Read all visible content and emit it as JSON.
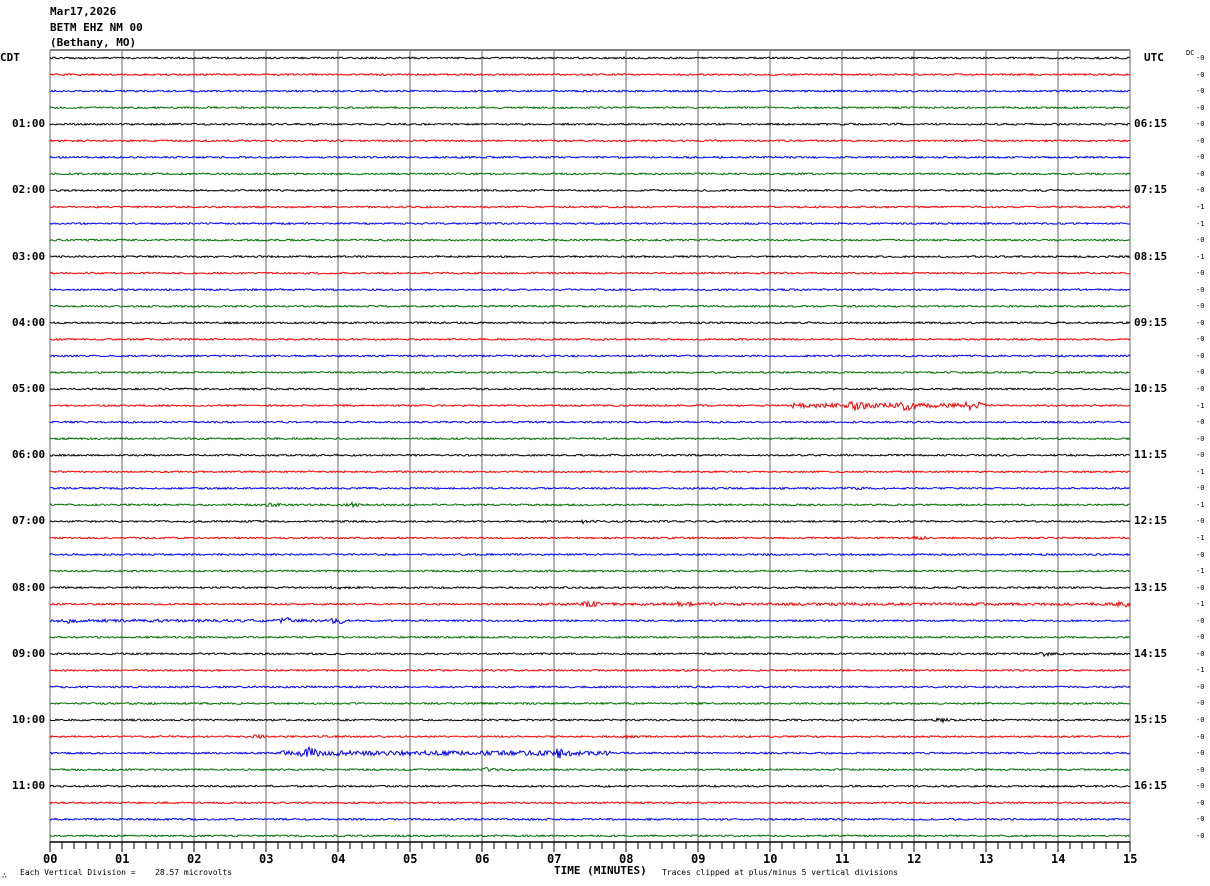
{
  "header": {
    "date": "Mar17,2026",
    "station": "BETM EHZ NM 00",
    "location": "(Bethany, MO)"
  },
  "left_timezone": "CDT",
  "right_timezone": "UTC",
  "dc_label": "DC",
  "footer": {
    "division_label": "Each Vertical Division =",
    "division_value": "28.57 microvolts",
    "clip_note": "Traces clipped at plus/minus 5 vertical divisions",
    "mark": "∴"
  },
  "chart_data": {
    "type": "line",
    "xlabel": "TIME (MINUTES)",
    "xlim": [
      0,
      15
    ],
    "x_ticks": [
      "00",
      "01",
      "02",
      "03",
      "04",
      "05",
      "06",
      "07",
      "08",
      "09",
      "10",
      "11",
      "12",
      "13",
      "14",
      "15"
    ],
    "trace_count": 48,
    "minutes_per_trace": 15,
    "trace_colors": [
      "#000000",
      "#ff0000",
      "#0000ff",
      "#007000"
    ],
    "left_hour_labels": [
      "01:00",
      "02:00",
      "03:00",
      "04:00",
      "05:00",
      "06:00",
      "07:00",
      "08:00",
      "09:00",
      "10:00",
      "11:00"
    ],
    "right_hour_labels": [
      "06:15",
      "07:15",
      "08:15",
      "09:15",
      "10:15",
      "11:15",
      "12:15",
      "13:15",
      "14:15",
      "15:15",
      "16:15"
    ],
    "dc_offsets": [
      "-0",
      "-0",
      "-0",
      "-0",
      "-0",
      "-0",
      "-0",
      "-0",
      "-0",
      "-1",
      "-1",
      "-0",
      "-1",
      "-0",
      "-0",
      "-0",
      "-0",
      "-0",
      "-0",
      "-0",
      "-0",
      "-1",
      "-0",
      "-0",
      "-0",
      "-1",
      "-0",
      "-1",
      "-0",
      "-1",
      "-0",
      "-1",
      "-0",
      "-1",
      "-0",
      "-0",
      "-0",
      "-1",
      "-0",
      "-0",
      "-0",
      "-0",
      "-0",
      "-0",
      "-0",
      "-0",
      "-0",
      "-0"
    ],
    "events": [
      {
        "trace": 21,
        "start": 10.3,
        "end": 12.9,
        "peaks": [
          11.2,
          11.9,
          12.8
        ],
        "amp": 6
      },
      {
        "trace": 26,
        "start": 10.8,
        "end": 11.6,
        "peaks": [
          11.2
        ],
        "amp": 2
      },
      {
        "trace": 27,
        "start": 2.5,
        "end": 6.0,
        "peaks": [
          3.1,
          4.2
        ],
        "amp": 2.5
      },
      {
        "trace": 28,
        "start": 6.5,
        "end": 8.6,
        "peaks": [
          7.4
        ],
        "amp": 2.5
      },
      {
        "trace": 29,
        "start": 11.0,
        "end": 13.0,
        "peaks": [
          12.1
        ],
        "amp": 2
      },
      {
        "trace": 32,
        "start": 3.8,
        "end": 4.4,
        "peaks": [
          4.0
        ],
        "amp": 2.5
      },
      {
        "trace": 33,
        "start": 6.8,
        "end": 15.0,
        "peaks": [
          7.5,
          8.8,
          14.9
        ],
        "amp": 3.5
      },
      {
        "trace": 34,
        "start": 0.0,
        "end": 4.2,
        "peaks": [
          0.3,
          3.3,
          4.0
        ],
        "amp": 3.5
      },
      {
        "trace": 36,
        "start": 13.6,
        "end": 14.1,
        "peaks": [
          13.8
        ],
        "amp": 2.5
      },
      {
        "trace": 40,
        "start": 12.3,
        "end": 12.6,
        "peaks": [
          12.4
        ],
        "amp": 2.5
      },
      {
        "trace": 41,
        "start": 2.7,
        "end": 8.2,
        "peaks": [
          2.9,
          8.0
        ],
        "amp": 2
      },
      {
        "trace": 42,
        "start": 3.2,
        "end": 7.8,
        "peaks": [
          3.6,
          7.1
        ],
        "amp": 6
      },
      {
        "trace": 43,
        "start": 6.0,
        "end": 6.4,
        "peaks": [
          6.1
        ],
        "amp": 2.5
      }
    ]
  }
}
